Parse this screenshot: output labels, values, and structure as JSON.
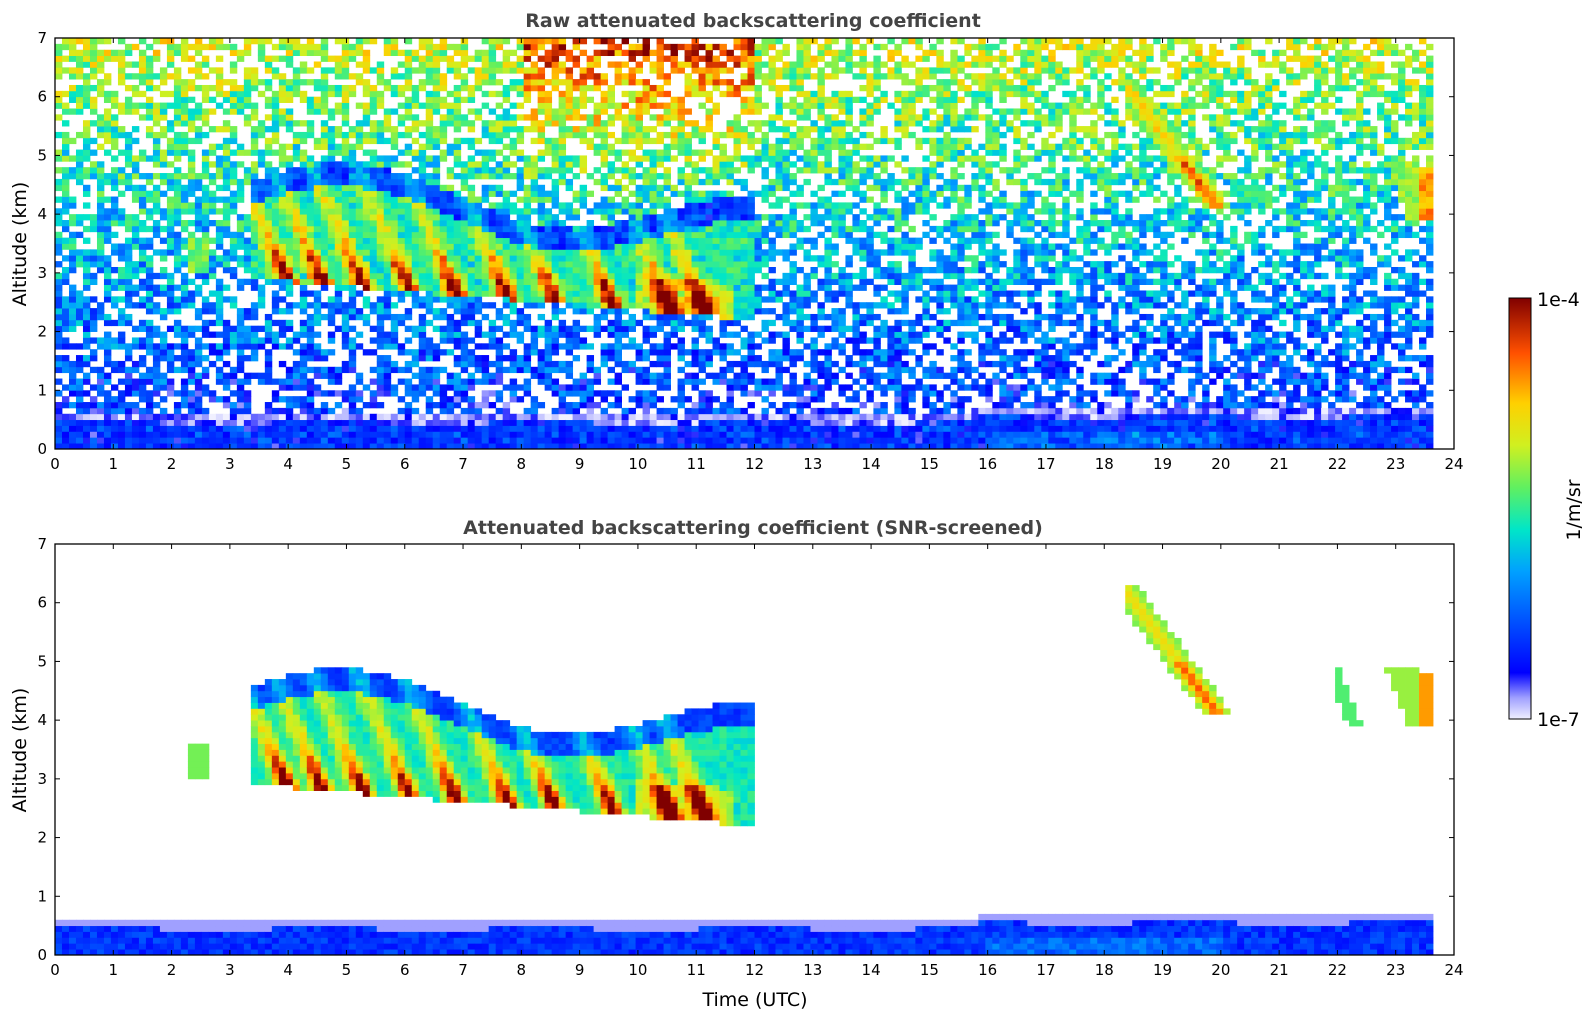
{
  "chart_data": [
    {
      "type": "heatmap",
      "title": "Raw attenuated backscattering coefficient",
      "xlabel": "",
      "ylabel": "Altitude (km)",
      "xlim": [
        0,
        24
      ],
      "ylim": [
        0,
        7
      ],
      "xticks": [
        0,
        1,
        2,
        3,
        4,
        5,
        6,
        7,
        8,
        9,
        10,
        11,
        12,
        13,
        14,
        15,
        16,
        17,
        18,
        19,
        20,
        21,
        22,
        23,
        24
      ],
      "yticks": [
        0,
        1,
        2,
        3,
        4,
        5,
        6,
        7
      ],
      "data_end_time": 23.65,
      "features": [
        {
          "name": "boundary layer",
          "t_start": 0,
          "t_end": 23.65,
          "alt_bottom": 0,
          "alt_top": 0.45,
          "log_value": -6.4
        },
        {
          "name": "virga cloud base",
          "t_start": 3.5,
          "t_end": 12,
          "alt_base_start": 2.9,
          "alt_base_end": 2.2,
          "peak_log_value": -4.3
        },
        {
          "name": "evening virga",
          "t_start": 18.2,
          "t_end": 23.65,
          "alt_bottom": 3.9,
          "alt_top": 7.0,
          "peak_log_value": -4.6
        }
      ]
    },
    {
      "type": "heatmap",
      "title": "Attenuated backscattering coefficient (SNR-screened)",
      "xlabel": "Time (UTC)",
      "ylabel": "Altitude (km)",
      "xlim": [
        0,
        24
      ],
      "ylim": [
        0,
        7
      ],
      "xticks": [
        0,
        1,
        2,
        3,
        4,
        5,
        6,
        7,
        8,
        9,
        10,
        11,
        12,
        13,
        14,
        15,
        16,
        17,
        18,
        19,
        20,
        21,
        22,
        23,
        24
      ],
      "yticks": [
        0,
        1,
        2,
        3,
        4,
        5,
        6,
        7
      ],
      "data_end_time": 23.65,
      "features": [
        {
          "name": "boundary layer",
          "t_start": 0,
          "t_end": 23.65,
          "alt_bottom": 0,
          "alt_top": 0.6,
          "log_value": -6.4
        },
        {
          "name": "virga cloud",
          "t_start": 3.4,
          "t_end": 12,
          "alt_bottom": 2.2,
          "alt_top": 4.6,
          "peak_log_value": -4.3
        },
        {
          "name": "fall streak 1",
          "t_start": 18.3,
          "t_end": 20.2,
          "alt_bottom": 4.1,
          "alt_top": 6.3,
          "peak_log_value": -4.4
        },
        {
          "name": "fall streak 2",
          "t_start": 21.9,
          "t_end": 22.4,
          "alt_bottom": 3.9,
          "alt_top": 4.9,
          "peak_log_value": -5.2
        },
        {
          "name": "fall streak 3",
          "t_start": 22.8,
          "t_end": 23.65,
          "alt_bottom": 3.85,
          "alt_top": 4.95,
          "peak_log_value": -4.4
        }
      ]
    }
  ],
  "colorbar": {
    "min_label": "1e-7",
    "max_label": "1e-4",
    "label": "1/m/sr",
    "log_min": -7,
    "log_max": -4,
    "colormap": "jet-white"
  }
}
